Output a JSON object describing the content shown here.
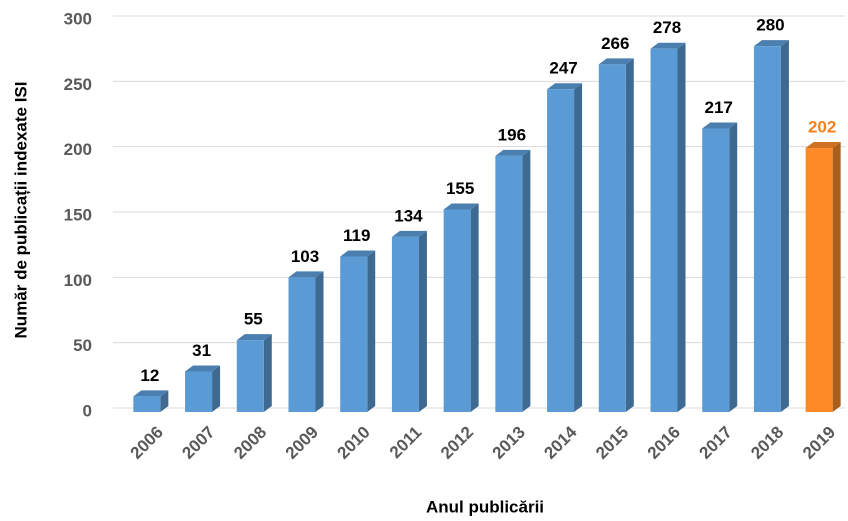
{
  "chart_data": {
    "type": "bar",
    "x_label": "Anul publicării",
    "y_label": "Număr de publicații indexate ISI",
    "categories": [
      "2006",
      "2007",
      "2008",
      "2009",
      "2010",
      "2011",
      "2012",
      "2013",
      "2014",
      "2015",
      "2016",
      "2017",
      "2018",
      "2019"
    ],
    "values": [
      12,
      31,
      55,
      103,
      119,
      134,
      155,
      196,
      247,
      266,
      278,
      217,
      280,
      202
    ],
    "colors": [
      "#5b9bd5",
      "#5b9bd5",
      "#5b9bd5",
      "#5b9bd5",
      "#5b9bd5",
      "#5b9bd5",
      "#5b9bd5",
      "#5b9bd5",
      "#5b9bd5",
      "#5b9bd5",
      "#5b9bd5",
      "#5b9bd5",
      "#5b9bd5",
      "#fd8a27"
    ],
    "label_colors": [
      "#000000",
      "#000000",
      "#000000",
      "#000000",
      "#000000",
      "#000000",
      "#000000",
      "#000000",
      "#000000",
      "#000000",
      "#000000",
      "#000000",
      "#000000",
      "#f5821f"
    ],
    "ylim": [
      0,
      300
    ],
    "yticks": [
      0,
      50,
      100,
      150,
      200,
      250,
      300
    ],
    "grid": true
  }
}
